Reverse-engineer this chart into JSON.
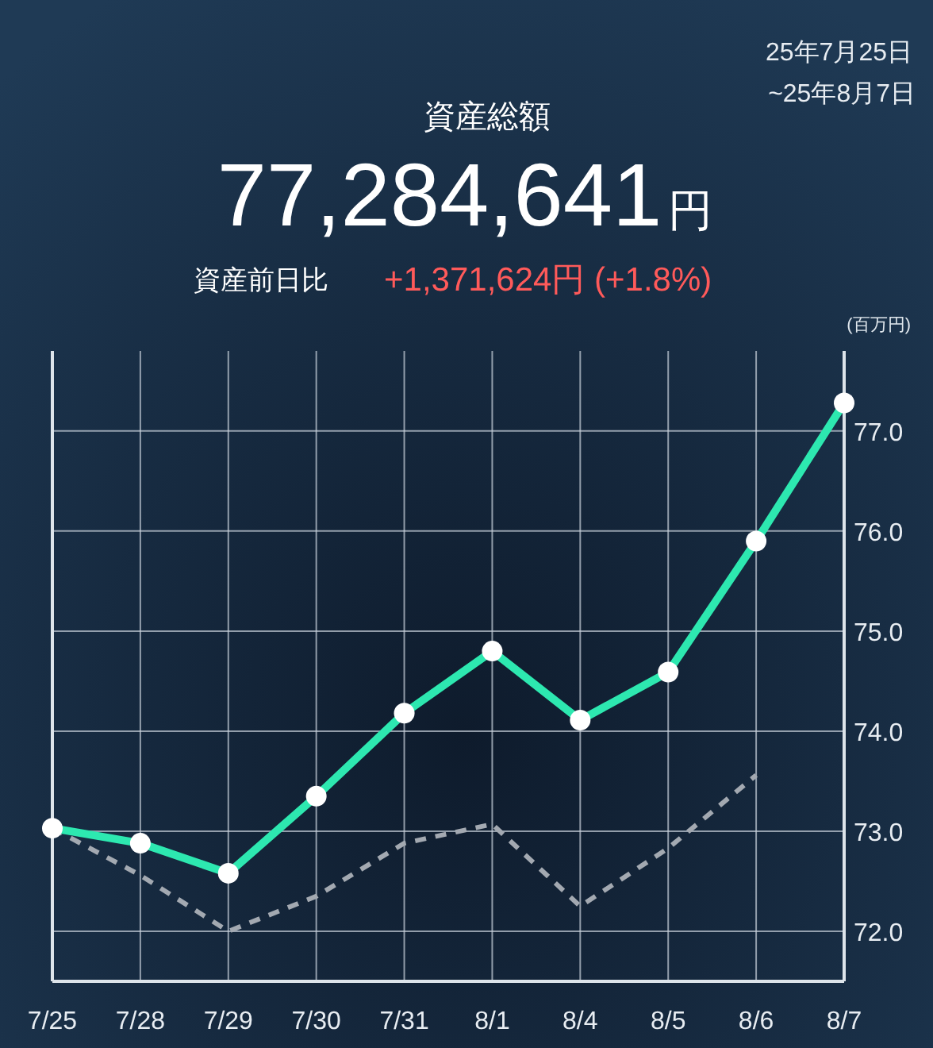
{
  "chart_data": {
    "type": "line",
    "title": "資産総額",
    "subtitle": "77,284,641円",
    "ylabel": "(百万円)",
    "annotations": [
      "25年7月25日",
      "~25年8月7日",
      "資産前日比",
      "+1,371,624円 (+1.8%)"
    ],
    "categories": [
      "7/25",
      "7/28",
      "7/29",
      "7/30",
      "7/31",
      "8/1",
      "8/4",
      "8/5",
      "8/6",
      "8/7"
    ],
    "series": [
      {
        "color": "#2de8b0",
        "marker": "circle",
        "line_style": "solid",
        "values": [
          73.03,
          72.88,
          72.58,
          73.35,
          74.18,
          74.8,
          74.11,
          74.59,
          75.9,
          77.28
        ]
      },
      {
        "color": "#a3a9b1",
        "marker": "none",
        "line_style": "dashed",
        "values": [
          73.03,
          72.56,
          72.0,
          72.35,
          72.88,
          73.07,
          72.25,
          72.83,
          73.56,
          null
        ]
      }
    ],
    "ylim": [
      71.5,
      77.8
    ],
    "yticks": [
      {
        "value": 72,
        "label": "72.0"
      },
      {
        "value": 73,
        "label": "73.0"
      },
      {
        "value": 74,
        "label": "74.0"
      },
      {
        "value": 75,
        "label": "75.0"
      },
      {
        "value": 76,
        "label": "76.0"
      },
      {
        "value": 77,
        "label": "77.0"
      }
    ],
    "grid": true
  }
}
